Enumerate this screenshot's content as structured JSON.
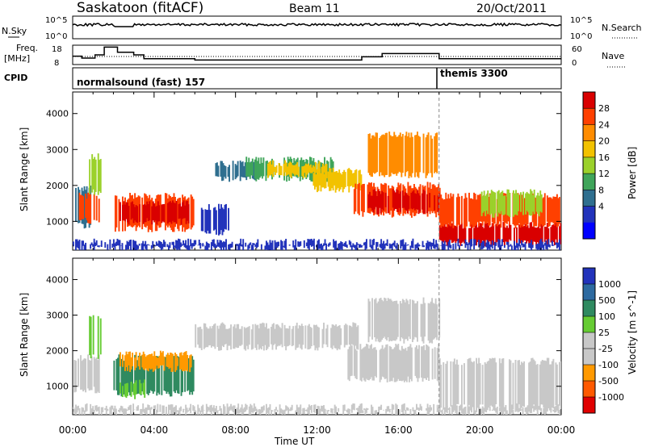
{
  "header": {
    "station": "Saskatoon (fitACF)",
    "beam": "Beam 11",
    "date": "20/Oct/2011"
  },
  "strips": {
    "sky_label": "N.Sky",
    "sky_ticks": [
      "10^5",
      "10^0"
    ],
    "search_label": "N.Search",
    "search_ticks": [
      "10^5",
      "10^0"
    ],
    "freq_label": "Freq.",
    "freq_unit": "[MHz]",
    "freq_ticks": [
      "18",
      "8"
    ],
    "nave_label": "Nave",
    "nave_ticks": [
      "60",
      "0"
    ],
    "cpid_label": "CPID",
    "cpid_segments": [
      {
        "label": "normalsound (fast) 157",
        "start_h": 0,
        "end_h": 18
      },
      {
        "label": "themis 3300",
        "start_h": 18,
        "end_h": 24
      }
    ],
    "freq_steps": [
      {
        "t": 0,
        "mhz": 12
      },
      {
        "t": 0.45,
        "mhz": 10.5
      },
      {
        "t": 1.1,
        "mhz": 13
      },
      {
        "t": 1.55,
        "mhz": 19
      },
      {
        "t": 2.2,
        "mhz": 15
      },
      {
        "t": 3.0,
        "mhz": 13
      },
      {
        "t": 3.5,
        "mhz": 10
      },
      {
        "t": 6.0,
        "mhz": 9
      },
      {
        "t": 14.2,
        "mhz": 11.5
      },
      {
        "t": 15.2,
        "mhz": 14
      },
      {
        "t": 18.0,
        "mhz": 10
      },
      {
        "t": 24,
        "mhz": 10
      }
    ]
  },
  "chart_data": [
    {
      "type": "heatmap",
      "title": "Power",
      "xlabel": "Time UT",
      "ylabel": "Slant Range [km]",
      "x_range_h": [
        0,
        24
      ],
      "x_ticks": [
        "00:00",
        "04:00",
        "08:00",
        "12:00",
        "16:00",
        "20:00",
        "00:00"
      ],
      "ylim": [
        200,
        4600
      ],
      "y_ticks": [
        1000,
        2000,
        3000,
        4000
      ],
      "colorbar": {
        "label": "Power [dB]",
        "ticks": [
          "28",
          "24",
          "20",
          "16",
          "12",
          "8",
          "4"
        ],
        "colors": [
          "#d90000",
          "#ff4000",
          "#ff8c00",
          "#f2c200",
          "#9bd12b",
          "#3fa55a",
          "#2f6f8f",
          "#2233bb",
          "#0000ff"
        ]
      },
      "regions": [
        {
          "t0": 0.0,
          "t1": 0.9,
          "r0": 900,
          "r1": 1900,
          "c": 6
        },
        {
          "t0": 0.3,
          "t1": 1.3,
          "r0": 1000,
          "r1": 1700,
          "c": 1
        },
        {
          "t0": 0.8,
          "t1": 1.4,
          "r0": 1800,
          "r1": 2800,
          "c": 4
        },
        {
          "t0": 2.0,
          "t1": 6.0,
          "r0": 800,
          "r1": 1700,
          "c": 1
        },
        {
          "t0": 2.3,
          "t1": 5.7,
          "r0": 1000,
          "r1": 1500,
          "c": 0
        },
        {
          "t0": 6.3,
          "t1": 7.7,
          "r0": 700,
          "r1": 1400,
          "c": 7
        },
        {
          "t0": 7.0,
          "t1": 9.0,
          "r0": 2200,
          "r1": 2600,
          "c": 6
        },
        {
          "t0": 8.5,
          "t1": 12.8,
          "r0": 2200,
          "r1": 2700,
          "c": 5
        },
        {
          "t0": 9.5,
          "t1": 12.5,
          "r0": 2300,
          "r1": 2600,
          "c": 3
        },
        {
          "t0": 11.8,
          "t1": 14.2,
          "r0": 1900,
          "r1": 2400,
          "c": 3
        },
        {
          "t0": 13.8,
          "t1": 18.0,
          "r0": 1200,
          "r1": 2000,
          "c": 1
        },
        {
          "t0": 14.5,
          "t1": 18.0,
          "r0": 1300,
          "r1": 1800,
          "c": 0
        },
        {
          "t0": 14.5,
          "t1": 18.0,
          "r0": 2300,
          "r1": 3400,
          "c": 2
        },
        {
          "t0": 18.0,
          "t1": 24.0,
          "r0": 400,
          "r1": 900,
          "c": 0
        },
        {
          "t0": 18.0,
          "t1": 24.0,
          "r0": 900,
          "r1": 1700,
          "c": 1
        },
        {
          "t0": 20.0,
          "t1": 23.0,
          "r0": 1200,
          "r1": 1800,
          "c": 4
        },
        {
          "t0": 0.0,
          "t1": 24.0,
          "r0": 250,
          "r1": 420,
          "c": 7
        }
      ]
    },
    {
      "type": "heatmap",
      "title": "Velocity",
      "xlabel": "Time UT",
      "ylabel": "Slant Range [km]",
      "x_range_h": [
        0,
        24
      ],
      "x_ticks": [
        "00:00",
        "04:00",
        "08:00",
        "12:00",
        "16:00",
        "20:00",
        "00:00"
      ],
      "ylim": [
        200,
        4600
      ],
      "y_ticks": [
        1000,
        2000,
        3000,
        4000
      ],
      "colorbar": {
        "label": "Velocity [m s^-1]",
        "ticks": [
          "1000",
          "500",
          "100",
          "25",
          "-25",
          "-100",
          "-500",
          "-1000"
        ],
        "colors": [
          "#2233bb",
          "#2d6aa0",
          "#2f8a60",
          "#66cc33",
          "#c8c8c8",
          "#c8c8c8",
          "#ff9900",
          "#ff5a00",
          "#e00000"
        ]
      },
      "regions": [
        {
          "t0": 0.0,
          "t1": 1.3,
          "r0": 900,
          "r1": 1800,
          "c": 4
        },
        {
          "t0": 0.8,
          "t1": 1.4,
          "r0": 1800,
          "r1": 3000,
          "c": 3
        },
        {
          "t0": 2.0,
          "t1": 6.0,
          "r0": 800,
          "r1": 1800,
          "c": 2
        },
        {
          "t0": 2.3,
          "t1": 3.6,
          "r0": 700,
          "r1": 1100,
          "c": 3
        },
        {
          "t0": 2.3,
          "t1": 5.8,
          "r0": 1500,
          "r1": 1900,
          "c": 6
        },
        {
          "t0": 6.0,
          "t1": 14.0,
          "r0": 2100,
          "r1": 2700,
          "c": 4
        },
        {
          "t0": 13.5,
          "t1": 18.0,
          "r0": 1200,
          "r1": 2100,
          "c": 4
        },
        {
          "t0": 14.5,
          "t1": 18.0,
          "r0": 2300,
          "r1": 3400,
          "c": 4
        },
        {
          "t0": 18.0,
          "t1": 24.0,
          "r0": 400,
          "r1": 1700,
          "c": 4
        },
        {
          "t0": 0.0,
          "t1": 24.0,
          "r0": 250,
          "r1": 420,
          "c": 5
        }
      ]
    }
  ]
}
